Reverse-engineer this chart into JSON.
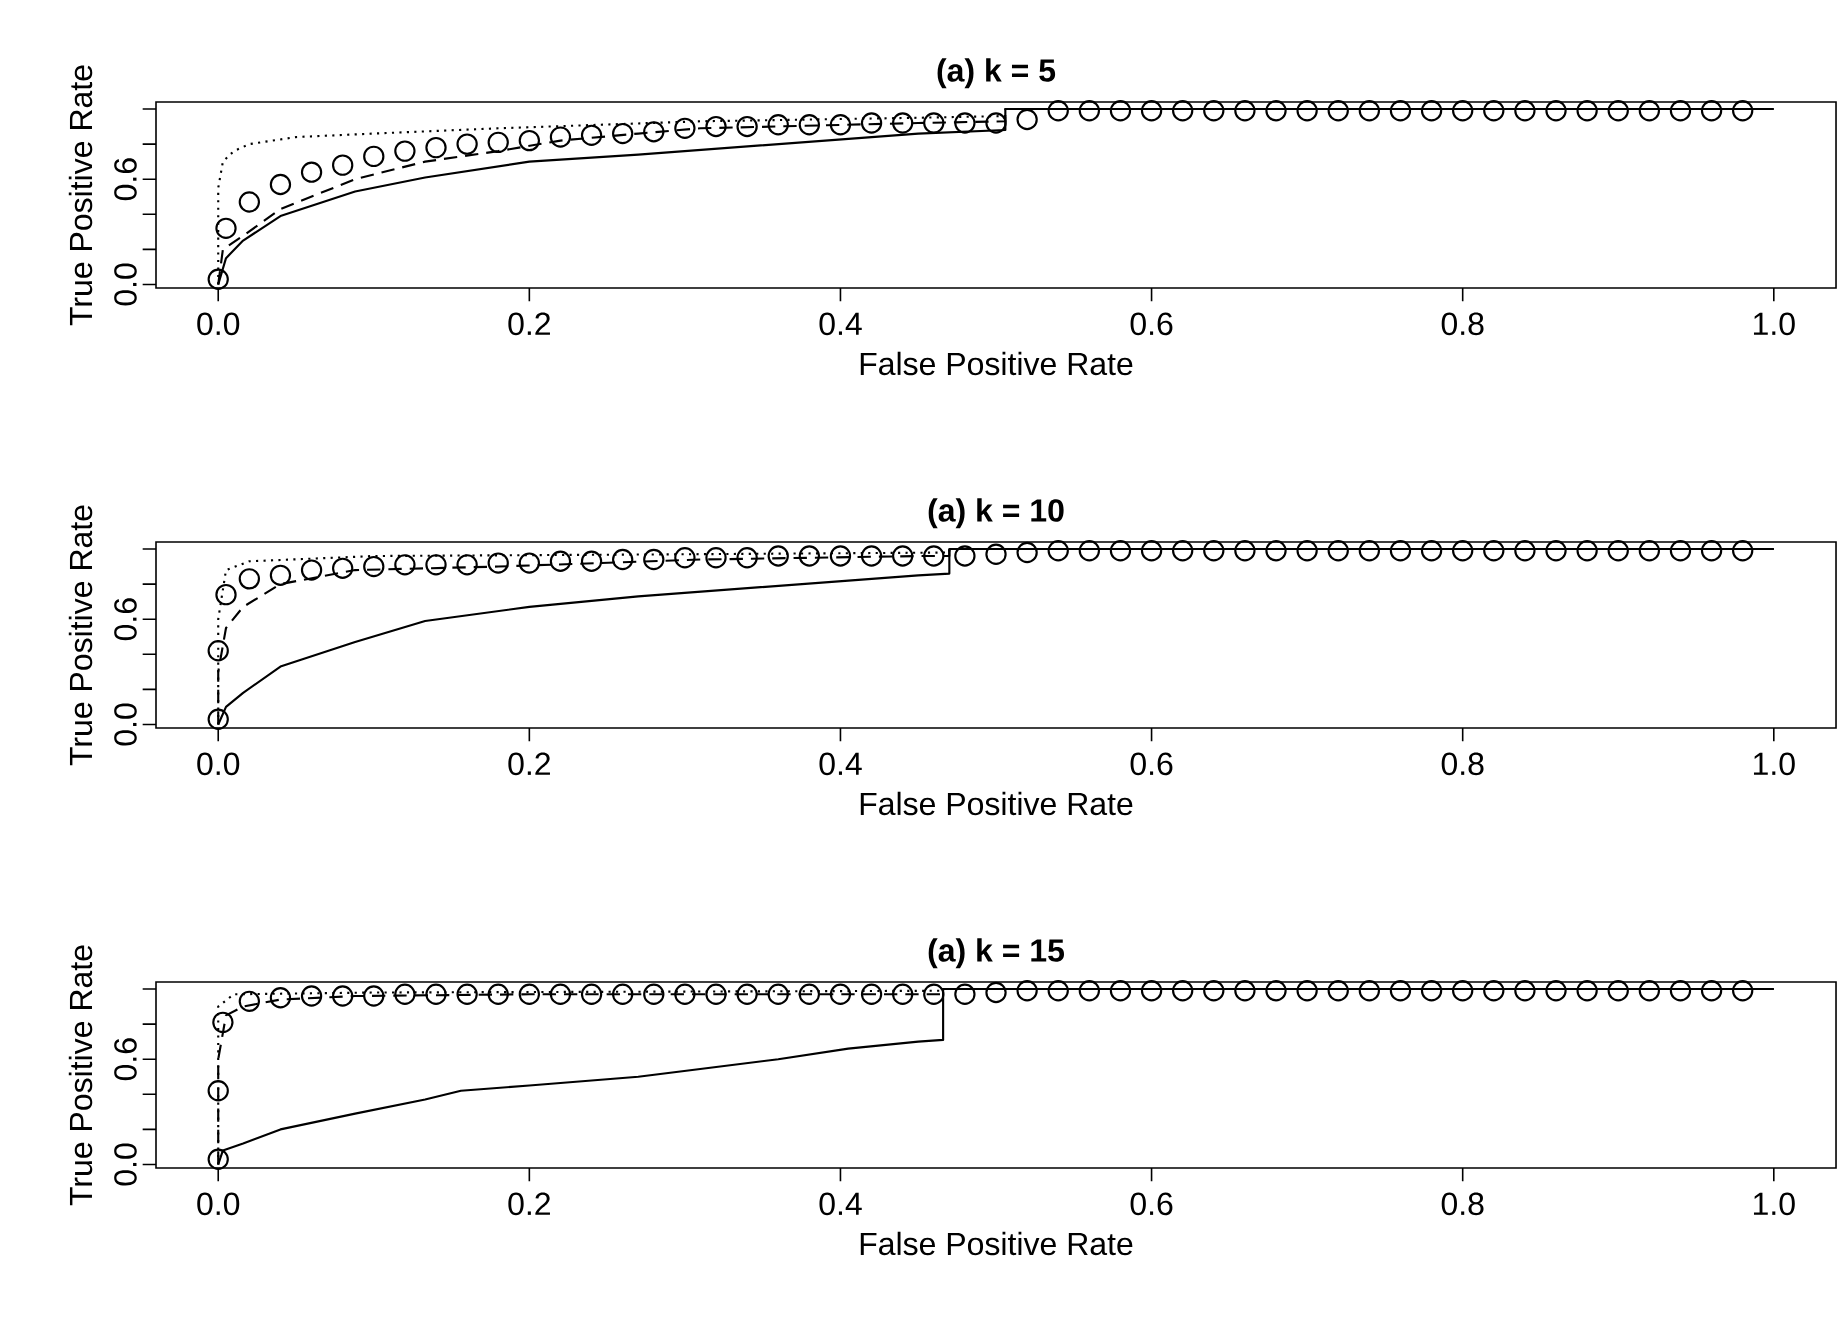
{
  "chart_data": [
    {
      "type": "line",
      "title": "(a) k = 5",
      "xlabel": "False Positive Rate",
      "ylabel": "True Positive Rate",
      "xlim": [
        -0.04,
        1.04
      ],
      "ylim": [
        -0.02,
        1.04
      ],
      "xticks": [
        {
          "value": 0,
          "label": "0.0"
        },
        {
          "value": 0.2,
          "label": "0.2"
        },
        {
          "value": 0.4,
          "label": "0.4"
        },
        {
          "value": 0.6,
          "label": "0.6"
        },
        {
          "value": 0.8,
          "label": "0.8"
        },
        {
          "value": 1,
          "label": "1.0"
        }
      ],
      "yticks": [
        {
          "value": 0,
          "label": "0.0"
        },
        {
          "value": 0.2,
          "label": null
        },
        {
          "value": 0.4,
          "label": null
        },
        {
          "value": 0.6,
          "label": "0.6"
        },
        {
          "value": 0.8,
          "label": null
        },
        {
          "value": 1,
          "label": null
        }
      ],
      "series": [
        {
          "type": "line",
          "line_style": "solid",
          "color": "#000000",
          "x": [
            0,
            0.005,
            0.016,
            0.04,
            0.088,
            0.133,
            0.2,
            0.27,
            0.36,
            0.45,
            0.506,
            0.506,
            1
          ],
          "values": [
            0,
            0.15,
            0.25,
            0.39,
            0.53,
            0.61,
            0.7,
            0.74,
            0.8,
            0.86,
            0.88,
            1,
            1
          ]
        },
        {
          "type": "line",
          "line_style": "dashed",
          "color": "#000000",
          "x": [
            0,
            0.003,
            0.018,
            0.04,
            0.088,
            0.133,
            0.18,
            0.22,
            0.27,
            0.31,
            0.45,
            0.506,
            0.506,
            1
          ],
          "values": [
            0,
            0.2,
            0.29,
            0.43,
            0.6,
            0.7,
            0.76,
            0.82,
            0.86,
            0.89,
            0.92,
            0.93,
            1,
            1
          ]
        },
        {
          "type": "line",
          "line_style": "dotted",
          "color": "#000000",
          "x": [
            0,
            0,
            0.003,
            0.01,
            0.02,
            0.05,
            0.1,
            0.18,
            0.31,
            0.45,
            0.506,
            0.506,
            1
          ],
          "values": [
            0,
            0.55,
            0.7,
            0.76,
            0.8,
            0.84,
            0.86,
            0.89,
            0.93,
            0.95,
            0.96,
            1,
            1
          ]
        },
        {
          "type": "scatter",
          "marker": "circle",
          "color": "#000000",
          "x": [
            0,
            0.005,
            0.02,
            0.04,
            0.06,
            0.08,
            0.1,
            0.12,
            0.14,
            0.16,
            0.18,
            0.2,
            0.22,
            0.24,
            0.26,
            0.28,
            0.3,
            0.32,
            0.34,
            0.36,
            0.38,
            0.4,
            0.42,
            0.44,
            0.46,
            0.48,
            0.5,
            0.52,
            0.54,
            0.56,
            0.58,
            0.6,
            0.62,
            0.64,
            0.66,
            0.68,
            0.7,
            0.72,
            0.74,
            0.76,
            0.78,
            0.8,
            0.82,
            0.84,
            0.86,
            0.88,
            0.9,
            0.92,
            0.94,
            0.96,
            0.98
          ],
          "values": [
            0.03,
            0.32,
            0.47,
            0.57,
            0.64,
            0.68,
            0.73,
            0.76,
            0.78,
            0.8,
            0.81,
            0.82,
            0.84,
            0.85,
            0.86,
            0.87,
            0.89,
            0.9,
            0.9,
            0.91,
            0.91,
            0.91,
            0.92,
            0.92,
            0.92,
            0.92,
            0.92,
            0.94,
            0.99,
            0.99,
            0.99,
            0.99,
            0.99,
            0.99,
            0.99,
            0.99,
            0.99,
            0.99,
            0.99,
            0.99,
            0.99,
            0.99,
            0.99,
            0.99,
            0.99,
            0.99,
            0.99,
            0.99,
            0.99,
            0.99,
            0.99
          ]
        }
      ]
    },
    {
      "type": "line",
      "title": "(a) k = 10",
      "xlabel": "False Positive Rate",
      "ylabel": "True Positive Rate",
      "xlim": [
        -0.04,
        1.04
      ],
      "ylim": [
        -0.02,
        1.04
      ],
      "xticks": [
        {
          "value": 0,
          "label": "0.0"
        },
        {
          "value": 0.2,
          "label": "0.2"
        },
        {
          "value": 0.4,
          "label": "0.4"
        },
        {
          "value": 0.6,
          "label": "0.6"
        },
        {
          "value": 0.8,
          "label": "0.8"
        },
        {
          "value": 1,
          "label": "1.0"
        }
      ],
      "yticks": [
        {
          "value": 0,
          "label": "0.0"
        },
        {
          "value": 0.2,
          "label": null
        },
        {
          "value": 0.4,
          "label": null
        },
        {
          "value": 0.6,
          "label": "0.6"
        },
        {
          "value": 0.8,
          "label": null
        },
        {
          "value": 1,
          "label": null
        }
      ],
      "series": [
        {
          "type": "line",
          "line_style": "solid",
          "color": "#000000",
          "x": [
            0,
            0.005,
            0.016,
            0.04,
            0.088,
            0.133,
            0.2,
            0.27,
            0.36,
            0.45,
            0.47,
            0.47,
            1
          ],
          "values": [
            0,
            0.1,
            0.18,
            0.33,
            0.47,
            0.59,
            0.67,
            0.73,
            0.79,
            0.85,
            0.86,
            1,
            1
          ]
        },
        {
          "type": "line",
          "line_style": "dashed",
          "color": "#000000",
          "x": [
            0,
            0,
            0.005,
            0.016,
            0.04,
            0.088,
            0.18,
            0.31,
            0.45,
            0.47,
            0.47,
            1
          ],
          "values": [
            0,
            0.3,
            0.55,
            0.67,
            0.8,
            0.88,
            0.9,
            0.94,
            0.96,
            0.96,
            1,
            1
          ]
        },
        {
          "type": "line",
          "line_style": "dotted",
          "color": "#000000",
          "x": [
            0,
            0,
            0.005,
            0.02,
            0.1,
            0.3,
            0.47,
            0.47,
            1
          ],
          "values": [
            0,
            0.6,
            0.88,
            0.93,
            0.96,
            0.97,
            0.98,
            1,
            1
          ]
        },
        {
          "type": "scatter",
          "marker": "circle",
          "color": "#000000",
          "x": [
            0,
            0,
            0.005,
            0.02,
            0.04,
            0.06,
            0.08,
            0.1,
            0.12,
            0.14,
            0.16,
            0.18,
            0.2,
            0.22,
            0.24,
            0.26,
            0.28,
            0.3,
            0.32,
            0.34,
            0.36,
            0.38,
            0.4,
            0.42,
            0.44,
            0.46,
            0.48,
            0.5,
            0.52,
            0.54,
            0.56,
            0.58,
            0.6,
            0.62,
            0.64,
            0.66,
            0.68,
            0.7,
            0.72,
            0.74,
            0.76,
            0.78,
            0.8,
            0.82,
            0.84,
            0.86,
            0.88,
            0.9,
            0.92,
            0.94,
            0.96,
            0.98
          ],
          "values": [
            0.03,
            0.42,
            0.74,
            0.83,
            0.85,
            0.88,
            0.89,
            0.9,
            0.91,
            0.91,
            0.91,
            0.92,
            0.92,
            0.93,
            0.93,
            0.94,
            0.94,
            0.95,
            0.95,
            0.95,
            0.96,
            0.96,
            0.96,
            0.96,
            0.96,
            0.96,
            0.96,
            0.97,
            0.98,
            0.99,
            0.99,
            0.99,
            0.99,
            0.99,
            0.99,
            0.99,
            0.99,
            0.99,
            0.99,
            0.99,
            0.99,
            0.99,
            0.99,
            0.99,
            0.99,
            0.99,
            0.99,
            0.99,
            0.99,
            0.99,
            0.99,
            0.99
          ]
        }
      ]
    },
    {
      "type": "line",
      "title": "(a) k = 15",
      "xlabel": "False Positive Rate",
      "ylabel": "True Positive Rate",
      "xlim": [
        -0.04,
        1.04
      ],
      "ylim": [
        -0.02,
        1.04
      ],
      "xticks": [
        {
          "value": 0,
          "label": "0.0"
        },
        {
          "value": 0.2,
          "label": "0.2"
        },
        {
          "value": 0.4,
          "label": "0.4"
        },
        {
          "value": 0.6,
          "label": "0.6"
        },
        {
          "value": 0.8,
          "label": "0.8"
        },
        {
          "value": 1,
          "label": "1.0"
        }
      ],
      "yticks": [
        {
          "value": 0,
          "label": "0.0"
        },
        {
          "value": 0.2,
          "label": null
        },
        {
          "value": 0.4,
          "label": null
        },
        {
          "value": 0.6,
          "label": "0.6"
        },
        {
          "value": 0.8,
          "label": null
        },
        {
          "value": 1,
          "label": null
        }
      ],
      "series": [
        {
          "type": "line",
          "line_style": "solid",
          "color": "#000000",
          "x": [
            0,
            0.003,
            0.016,
            0.04,
            0.088,
            0.133,
            0.156,
            0.2,
            0.27,
            0.315,
            0.36,
            0.405,
            0.45,
            0.466,
            0.466,
            1
          ],
          "values": [
            0,
            0.08,
            0.12,
            0.2,
            0.29,
            0.37,
            0.42,
            0.45,
            0.5,
            0.55,
            0.6,
            0.66,
            0.7,
            0.71,
            1,
            1
          ]
        },
        {
          "type": "line",
          "line_style": "dashed",
          "color": "#000000",
          "x": [
            0,
            0,
            0.005,
            0.016,
            0.04,
            0.088,
            0.2,
            0.466,
            0.466,
            1
          ],
          "values": [
            0,
            0.6,
            0.85,
            0.9,
            0.94,
            0.96,
            0.97,
            0.97,
            1,
            1
          ]
        },
        {
          "type": "line",
          "line_style": "dotted",
          "color": "#000000",
          "x": [
            0,
            0,
            0.01,
            0.1,
            0.466,
            0.466,
            1
          ],
          "values": [
            0,
            0.9,
            0.97,
            0.98,
            0.99,
            1,
            1
          ]
        },
        {
          "type": "scatter",
          "marker": "circle",
          "color": "#000000",
          "x": [
            0,
            0,
            0.003,
            0.02,
            0.04,
            0.06,
            0.08,
            0.1,
            0.12,
            0.14,
            0.16,
            0.18,
            0.2,
            0.22,
            0.24,
            0.26,
            0.28,
            0.3,
            0.32,
            0.34,
            0.36,
            0.38,
            0.4,
            0.42,
            0.44,
            0.46,
            0.48,
            0.5,
            0.52,
            0.54,
            0.56,
            0.58,
            0.6,
            0.62,
            0.64,
            0.66,
            0.68,
            0.7,
            0.72,
            0.74,
            0.76,
            0.78,
            0.8,
            0.82,
            0.84,
            0.86,
            0.88,
            0.9,
            0.92,
            0.94,
            0.96,
            0.98
          ],
          "values": [
            0.03,
            0.42,
            0.81,
            0.93,
            0.95,
            0.96,
            0.96,
            0.96,
            0.97,
            0.97,
            0.97,
            0.97,
            0.97,
            0.97,
            0.97,
            0.97,
            0.97,
            0.97,
            0.97,
            0.97,
            0.97,
            0.97,
            0.97,
            0.97,
            0.97,
            0.97,
            0.97,
            0.98,
            0.99,
            0.99,
            0.99,
            0.99,
            0.99,
            0.99,
            0.99,
            0.99,
            0.99,
            0.99,
            0.99,
            0.99,
            0.99,
            0.99,
            0.99,
            0.99,
            0.99,
            0.99,
            0.99,
            0.99,
            0.99,
            0.99,
            0.99,
            0.99
          ]
        }
      ]
    }
  ]
}
